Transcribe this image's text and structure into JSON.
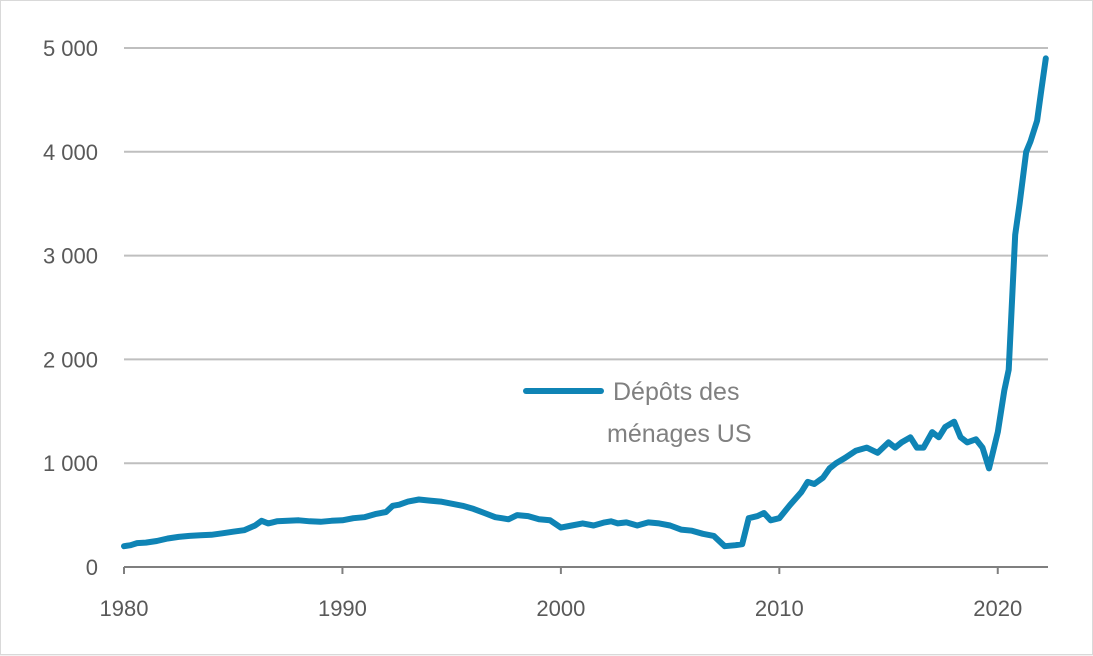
{
  "chart_data": {
    "type": "line",
    "title": "",
    "xlabel": "",
    "ylabel": "",
    "xlim": [
      1980,
      2022.3
    ],
    "ylim": [
      0,
      5000
    ],
    "x_ticks": [
      1980,
      1990,
      2000,
      2010,
      2020
    ],
    "x_tick_labels": [
      "1980",
      "1990",
      "2000",
      "2010",
      "2020"
    ],
    "y_ticks": [
      0,
      1000,
      2000,
      3000,
      4000,
      5000
    ],
    "y_tick_labels": [
      "0",
      "1 000",
      "2 000",
      "3 000",
      "4 000",
      "5 000"
    ],
    "grid": "horizontal",
    "legend": {
      "position": "center-right",
      "lines": [
        "Dépôts des",
        "ménages US"
      ]
    },
    "colors": {
      "series": "#0f84b5",
      "grid": "#bfbfbf",
      "axis": "#7f7f7f",
      "text": "#595959",
      "legend_text": "#808080"
    },
    "series": [
      {
        "name": "Dépôts des ménages US",
        "x": [
          1980,
          1980.3,
          1980.6,
          1981,
          1981.5,
          1982,
          1982.5,
          1983,
          1983.5,
          1984,
          1984.5,
          1985,
          1985.5,
          1986,
          1986.3,
          1986.6,
          1986.8,
          1987,
          1987.5,
          1988,
          1988.5,
          1989,
          1989.5,
          1990,
          1990.5,
          1991,
          1991.5,
          1992,
          1992.3,
          1992.6,
          1993,
          1993.5,
          1994,
          1994.5,
          1995,
          1995.5,
          1996,
          1996.5,
          1997,
          1997.3,
          1997.6,
          1998,
          1998.5,
          1999,
          1999.5,
          2000,
          2000.5,
          2001,
          2001.5,
          2002,
          2002.3,
          2002.6,
          2003,
          2003.5,
          2004,
          2004.5,
          2005,
          2005.5,
          2006,
          2006.5,
          2007,
          2007.5,
          2008,
          2008.3,
          2008.6,
          2009,
          2009.3,
          2009.6,
          2010,
          2010.5,
          2011,
          2011.3,
          2011.6,
          2012,
          2012.3,
          2012.6,
          2013,
          2013.5,
          2014,
          2014.5,
          2015,
          2015.3,
          2015.6,
          2016,
          2016.3,
          2016.6,
          2017,
          2017.3,
          2017.6,
          2018,
          2018.3,
          2018.6,
          2019,
          2019.3,
          2019.6,
          2020,
          2020.3,
          2020.5,
          2020.8,
          2021,
          2021.3,
          2021.5,
          2021.8,
          2022,
          2022.2
        ],
        "values": [
          200,
          210,
          230,
          235,
          250,
          275,
          290,
          300,
          305,
          310,
          325,
          340,
          355,
          400,
          445,
          420,
          430,
          440,
          445,
          450,
          440,
          435,
          445,
          450,
          470,
          480,
          510,
          530,
          590,
          600,
          630,
          650,
          640,
          630,
          610,
          590,
          560,
          520,
          480,
          470,
          460,
          500,
          490,
          460,
          450,
          380,
          400,
          420,
          400,
          430,
          440,
          420,
          430,
          400,
          430,
          420,
          400,
          360,
          350,
          320,
          300,
          200,
          210,
          220,
          470,
          490,
          520,
          450,
          470,
          600,
          720,
          820,
          800,
          860,
          950,
          1000,
          1050,
          1120,
          1150,
          1100,
          1200,
          1150,
          1200,
          1250,
          1150,
          1150,
          1300,
          1250,
          1350,
          1400,
          1250,
          1200,
          1230,
          1150,
          950,
          1300,
          1700,
          1900,
          3200,
          3500,
          4000,
          4100,
          4300,
          4600,
          4900
        ]
      }
    ]
  }
}
